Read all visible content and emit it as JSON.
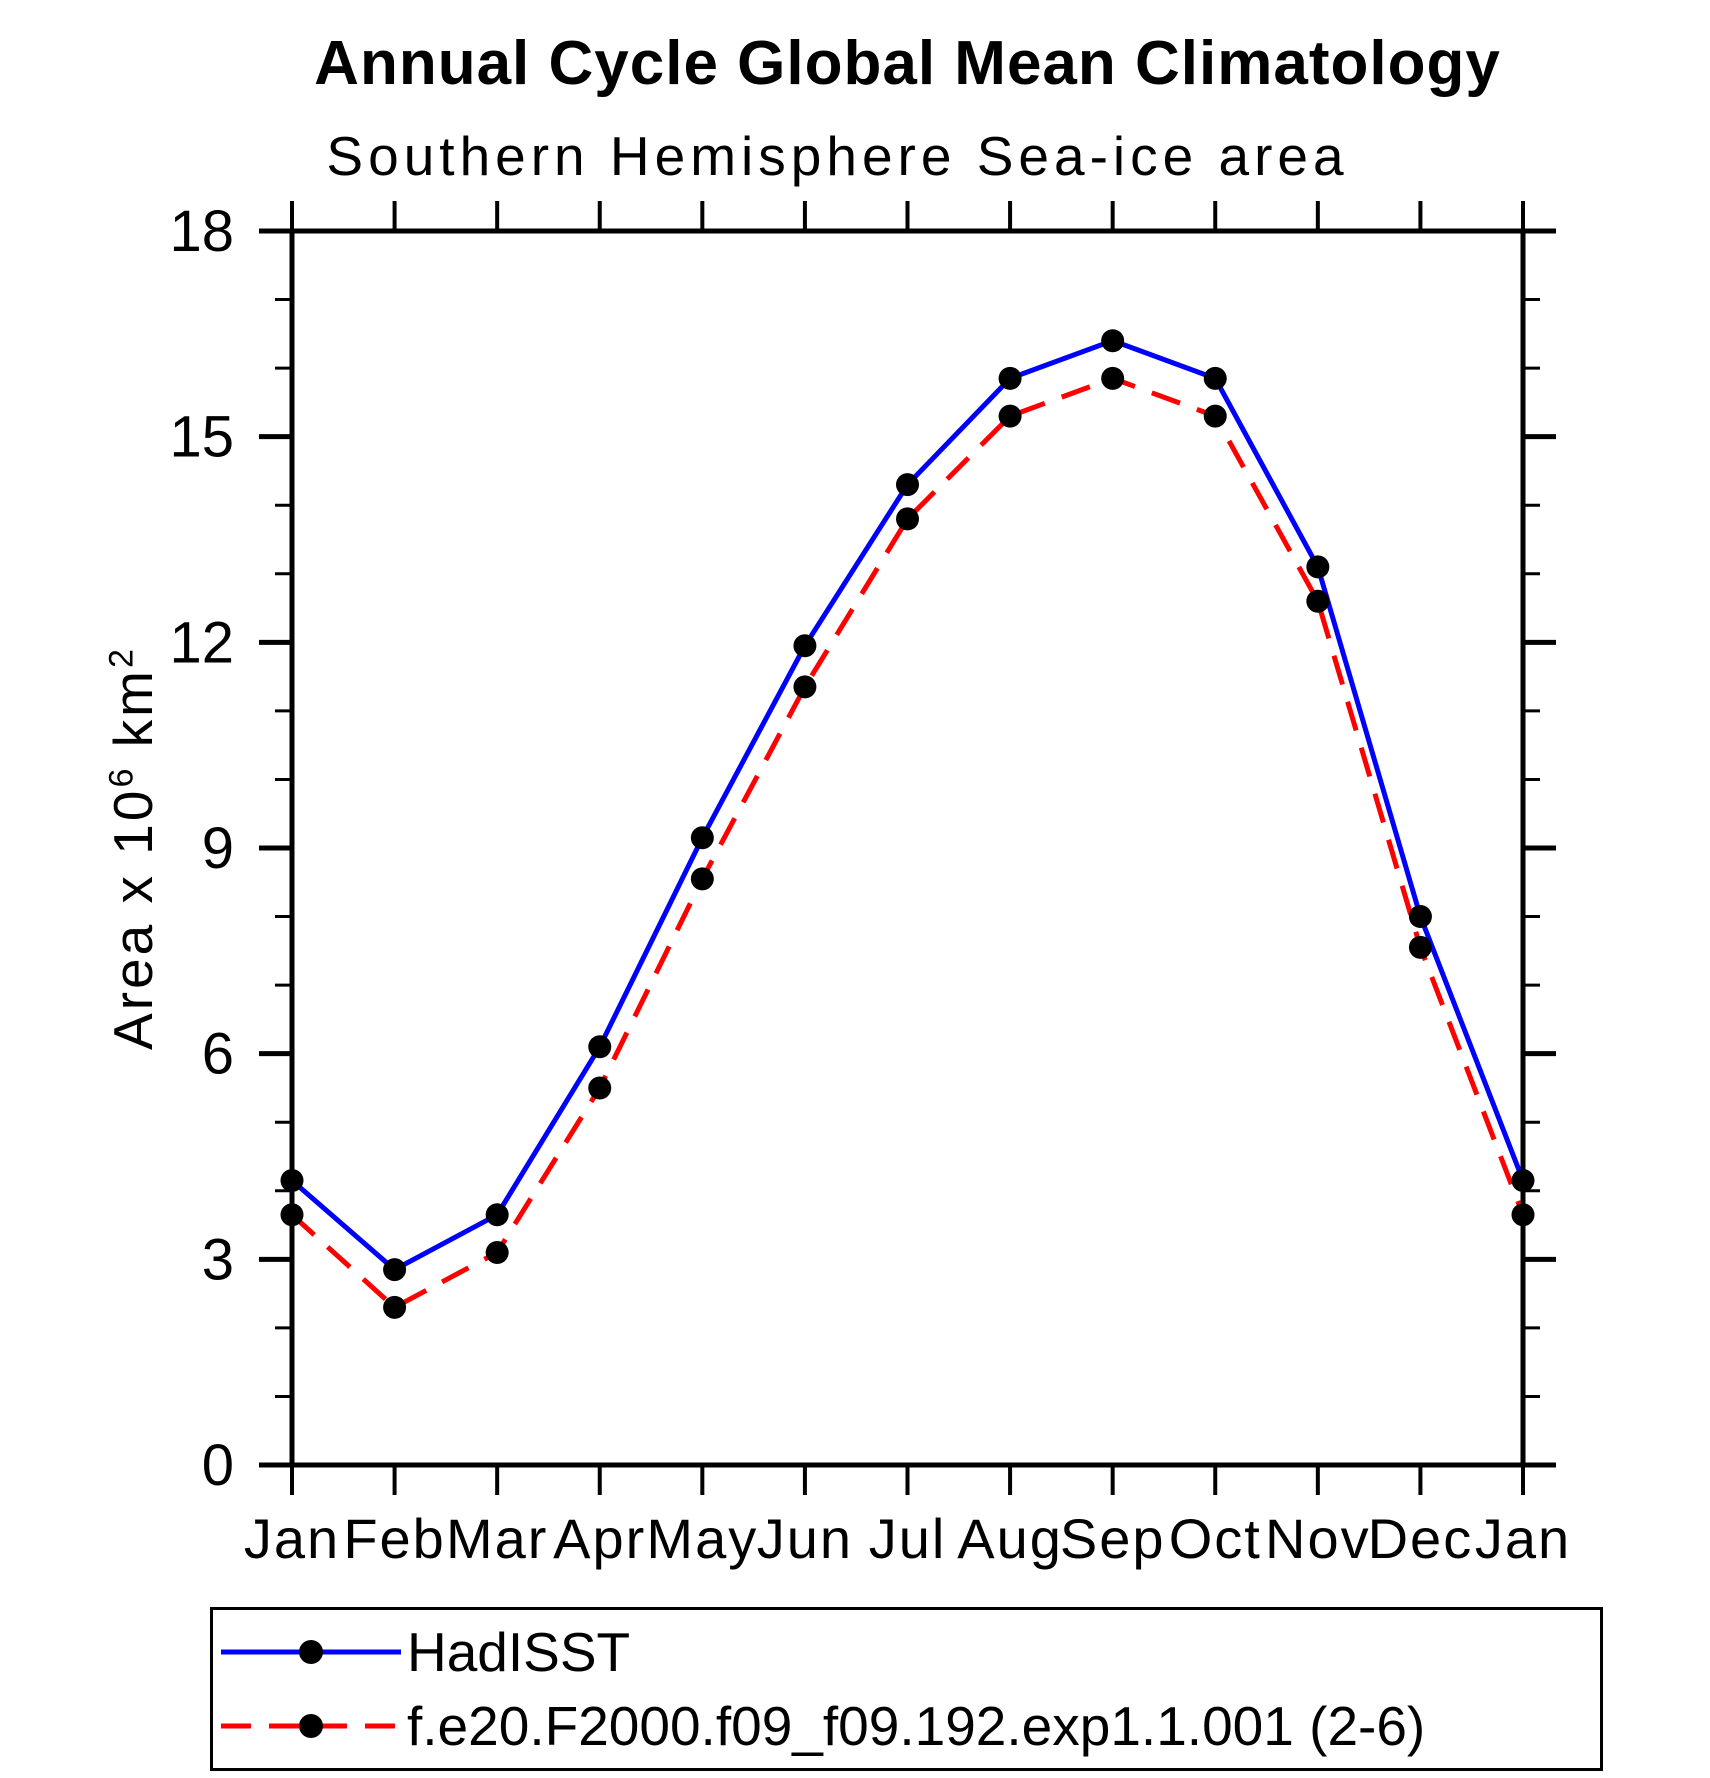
{
  "header": {
    "title": "Annual Cycle Global Mean Climatology",
    "subtitle": "Southern Hemisphere Sea-ice area"
  },
  "y_axis_label": {
    "base1": "Area x 10",
    "sup1": "6",
    "base2": " km",
    "sup2": "2"
  },
  "chart_data": {
    "type": "line",
    "title": "Annual Cycle Global Mean Climatology",
    "subtitle": "Southern Hemisphere Sea-ice area",
    "xlabel": "",
    "ylabel": "Area x 10^6 km^2",
    "categories": [
      "Jan",
      "Feb",
      "Mar",
      "Apr",
      "May",
      "Jun",
      "Jul",
      "Aug",
      "Sep",
      "Oct",
      "Nov",
      "Dec",
      "Jan"
    ],
    "ylim": [
      0,
      18
    ],
    "ytick_major": [
      0,
      3,
      6,
      9,
      12,
      15,
      18
    ],
    "ytick_minor_step": 1,
    "grid": false,
    "legend_position": "bottom",
    "marker_color": "#000000",
    "series": [
      {
        "name": "HadISST",
        "color": "#0000ff",
        "style": "solid",
        "marker": "circle",
        "values": [
          4.15,
          2.85,
          3.65,
          6.1,
          9.15,
          11.95,
          14.3,
          15.85,
          16.4,
          15.85,
          13.1,
          8.0,
          4.15
        ]
      },
      {
        "name": "f.e20.F2000.f09_f09.192.exp1.1.001 (2-6)",
        "color": "#ff0000",
        "style": "dashed",
        "marker": "circle",
        "values": [
          3.65,
          2.3,
          3.1,
          5.5,
          8.55,
          11.35,
          13.8,
          15.3,
          15.85,
          15.3,
          12.6,
          7.55,
          3.65
        ]
      }
    ]
  }
}
